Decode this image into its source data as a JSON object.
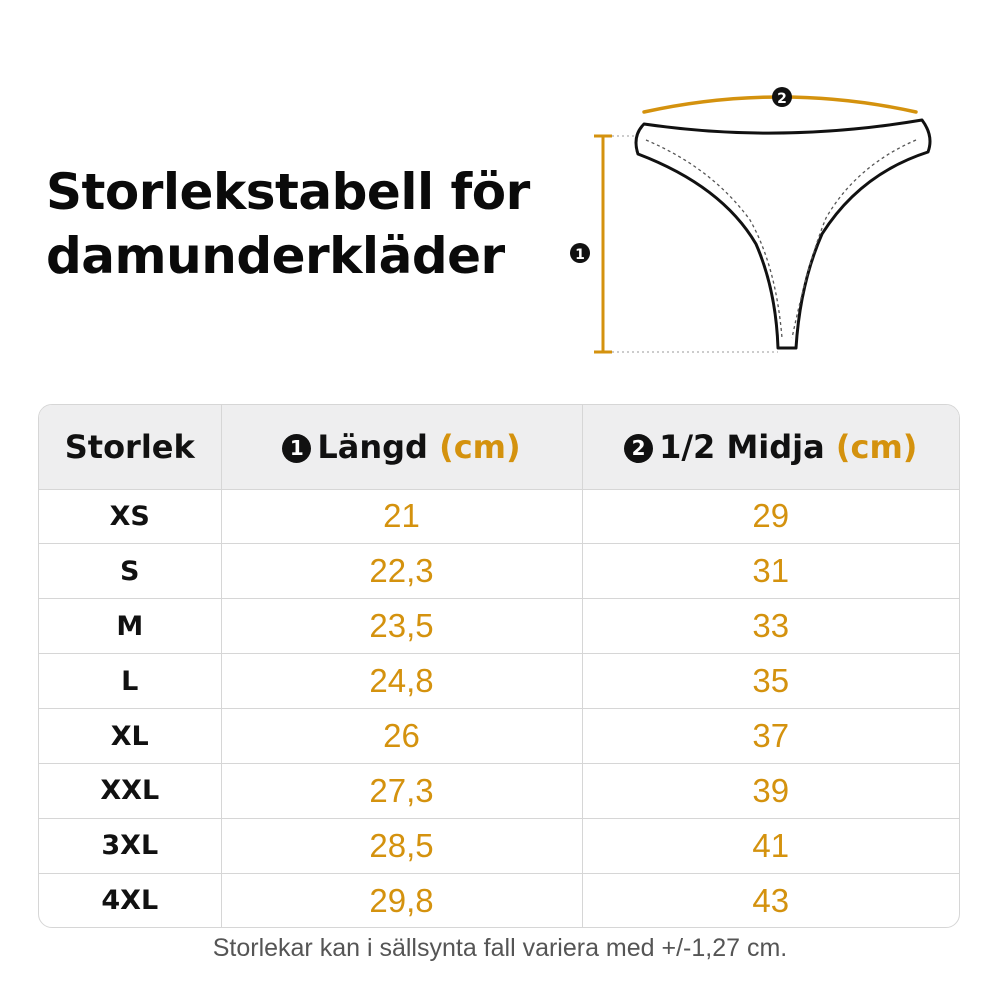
{
  "title": {
    "line1": "Storlekstabell för",
    "line2": "damunderkläder"
  },
  "diagram": {
    "marker_length": "1",
    "marker_waist": "2"
  },
  "table": {
    "headers": {
      "size": "Storlek",
      "length_num": "1",
      "length_label": "Längd",
      "length_unit": "(cm)",
      "waist_num": "2",
      "waist_label": "1/2 Midja",
      "waist_unit": "(cm)"
    },
    "rows": [
      {
        "size": "XS",
        "length": "21",
        "waist": "29"
      },
      {
        "size": "S",
        "length": "22,3",
        "waist": "31"
      },
      {
        "size": "M",
        "length": "23,5",
        "waist": "33"
      },
      {
        "size": "L",
        "length": "24,8",
        "waist": "35"
      },
      {
        "size": "XL",
        "length": "26",
        "waist": "37"
      },
      {
        "size": "XXL",
        "length": "27,3",
        "waist": "39"
      },
      {
        "size": "3XL",
        "length": "28,5",
        "waist": "41"
      },
      {
        "size": "4XL",
        "length": "29,8",
        "waist": "43"
      }
    ]
  },
  "note": "Storlekar kan i sällsynta fall variera med +/-1,27 cm.",
  "colors": {
    "accent": "#d4920e",
    "header_bg": "#eeeeef",
    "text": "#111111",
    "border": "#d6d6d6"
  }
}
